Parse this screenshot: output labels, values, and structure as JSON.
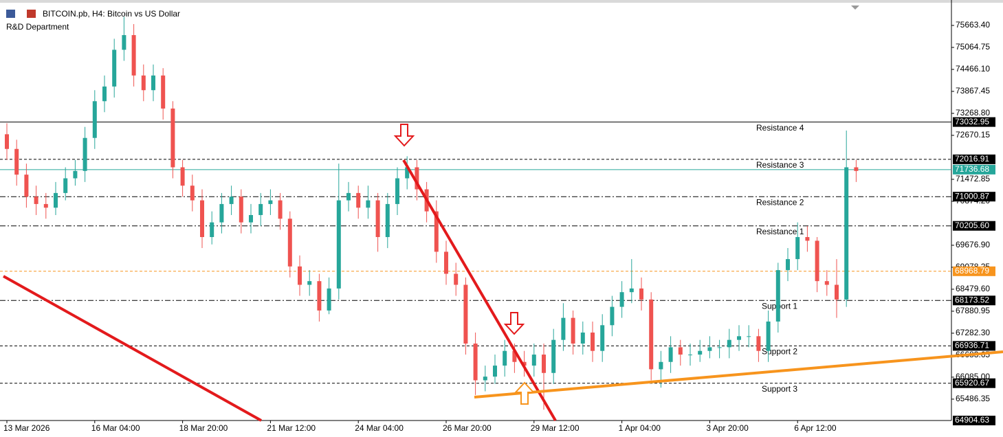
{
  "chart_data": {
    "type": "candlestick",
    "title": "BITCOIN.pb, H4:  Bitcoin vs US Dollar",
    "subtitle": "R&D Department",
    "up_color": "#26a69a",
    "down_color": "#ef5350",
    "categories": [
      "13 Mar 2026",
      null,
      null,
      null,
      null,
      null,
      null,
      null,
      null,
      "16 Mar 04:00",
      null,
      null,
      null,
      null,
      null,
      null,
      null,
      null,
      "18 Mar 20:00",
      null,
      null,
      null,
      null,
      null,
      null,
      null,
      null,
      "21 Mar 12:00",
      null,
      null,
      null,
      null,
      null,
      null,
      null,
      null,
      "24 Mar 04:00",
      null,
      null,
      null,
      null,
      null,
      null,
      null,
      null,
      "26 Mar 20:00",
      null,
      null,
      null,
      null,
      null,
      null,
      null,
      null,
      "29 Mar 12:00",
      null,
      null,
      null,
      null,
      null,
      null,
      null,
      null,
      "1 Apr 04:00",
      null,
      null,
      null,
      null,
      null,
      null,
      null,
      null,
      "3 Apr 20:00",
      null,
      null,
      null,
      null,
      null,
      null,
      null,
      null,
      "6 Apr 12:00",
      null,
      null,
      null,
      null,
      null,
      null
    ],
    "open": [
      72700,
      72300,
      71600,
      71000,
      70800,
      70700,
      71100,
      71500,
      71700,
      72600,
      73600,
      74000,
      75000,
      75400,
      74300,
      73900,
      74300,
      73400,
      71800,
      71300,
      70900,
      69900,
      70300,
      70800,
      71000,
      70300,
      70500,
      70800,
      70900,
      70400,
      69100,
      68600,
      68700,
      67900,
      68500,
      70900,
      71100,
      70700,
      70900,
      69900,
      70800,
      71500,
      71800,
      71200,
      70600,
      69500,
      68900,
      68600,
      67000,
      66000,
      66100,
      66400,
      66800,
      66500,
      66400,
      66700,
      66200,
      67100,
      67700,
      67000,
      67300,
      66800,
      67500,
      68000,
      68400,
      68500,
      68200,
      66300,
      66500,
      66900,
      66700,
      66700,
      66800,
      66900,
      66900,
      67100,
      67200,
      67200,
      66800,
      67600,
      69000,
      69300,
      69900,
      69800,
      68700,
      68600,
      68200,
      71800
    ],
    "high": [
      73000,
      72550,
      71900,
      71300,
      71100,
      71400,
      71800,
      72000,
      72900,
      73900,
      74300,
      75300,
      75900,
      75700,
      74600,
      74600,
      74500,
      73600,
      72000,
      71600,
      71200,
      70600,
      71100,
      71300,
      71200,
      70800,
      71100,
      71200,
      71100,
      70600,
      69400,
      69000,
      68900,
      68800,
      71900,
      71400,
      71300,
      71300,
      71100,
      71100,
      71800,
      72100,
      72000,
      71400,
      70900,
      69800,
      69200,
      68800,
      67300,
      66400,
      66700,
      67100,
      67000,
      66800,
      67000,
      67000,
      67400,
      68100,
      67900,
      67600,
      67600,
      67800,
      68300,
      68700,
      69300,
      68800,
      68400,
      66800,
      67200,
      67100,
      67000,
      67100,
      67200,
      67100,
      67400,
      67500,
      67500,
      67400,
      67900,
      69200,
      69600,
      70300,
      70200,
      69900,
      69000,
      69300,
      72800,
      72000
    ],
    "low": [
      72000,
      71300,
      70700,
      70500,
      70400,
      70500,
      70900,
      71300,
      71400,
      72300,
      73300,
      73700,
      74700,
      74000,
      73600,
      73600,
      73100,
      71500,
      71000,
      70600,
      69600,
      69700,
      70000,
      70500,
      70000,
      70000,
      70200,
      70500,
      70100,
      68800,
      68300,
      68300,
      67600,
      67800,
      68200,
      70600,
      70400,
      70400,
      69500,
      69600,
      70500,
      71200,
      70900,
      70300,
      69200,
      68600,
      68300,
      66700,
      65600,
      65700,
      65900,
      66100,
      66200,
      66100,
      66100,
      65200,
      65900,
      66800,
      66700,
      66700,
      66500,
      66500,
      67200,
      67700,
      68100,
      67900,
      66000,
      65800,
      66200,
      66400,
      66400,
      66500,
      66600,
      66600,
      66600,
      66800,
      66900,
      66500,
      66500,
      67300,
      68700,
      69000,
      69500,
      68400,
      68300,
      67700,
      68000,
      71400
    ],
    "close": [
      72300,
      71600,
      71000,
      70800,
      70700,
      71100,
      71500,
      71700,
      72600,
      73600,
      74000,
      75000,
      75400,
      74300,
      73900,
      74300,
      73400,
      71800,
      71300,
      70900,
      69900,
      70300,
      70800,
      71000,
      70300,
      70500,
      70800,
      70900,
      70400,
      69100,
      68600,
      68700,
      67900,
      68500,
      70900,
      71100,
      70700,
      70900,
      69900,
      70800,
      71500,
      71800,
      71200,
      70600,
      69500,
      68900,
      68600,
      67000,
      66000,
      66100,
      66400,
      66800,
      66500,
      66400,
      66700,
      66200,
      67100,
      67700,
      67000,
      67300,
      66800,
      67500,
      68000,
      68400,
      68500,
      68200,
      66300,
      66500,
      66900,
      66700,
      66700,
      66800,
      66900,
      66900,
      67100,
      67200,
      67200,
      66800,
      67600,
      69000,
      69300,
      69900,
      69800,
      68700,
      68600,
      68200,
      71800,
      71700
    ],
    "ylim": [
      64904.63,
      76355.7
    ],
    "yticks": [
      {
        "value": 75663.4,
        "label": "75663.40"
      },
      75064.75,
      {
        "value": 74466.1,
        "label": "74466.10"
      },
      73867.45,
      {
        "value": 73268.8,
        "label": "73268.80"
      },
      72670.15,
      71472.85,
      {
        "value": 70874.2,
        "label": "70874.20"
      },
      {
        "value": 69676.9,
        "label": "69676.90"
      },
      69078.25,
      {
        "value": 68479.6,
        "label": "68479.60"
      },
      67880.95,
      {
        "value": 67282.3,
        "label": "67282.30"
      },
      66683.65,
      {
        "value": 66085.0,
        "label": "66085.00"
      },
      65486.35
    ],
    "levels": [
      {
        "name": "Resistance 4",
        "value": 73032.95,
        "style": "solid",
        "color": "#000000"
      },
      {
        "name": "Resistance 3",
        "value": 72016.91,
        "style": "dashed",
        "color": "#000000"
      },
      {
        "value": 71736.68,
        "style": "solid",
        "color": "#26a69a"
      },
      {
        "name": "Resistance 2",
        "value": 71000.87,
        "style": "dashdot",
        "color": "#000000"
      },
      {
        "name": "Resistance 1",
        "value": 70205.6,
        "label": "70205.60",
        "style": "dashdot",
        "color": "#000000"
      },
      {
        "value": 68968.79,
        "style": "dashed",
        "color": "#f7941d"
      },
      {
        "name": "Support 1",
        "value": 68173.52,
        "style": "dashdot",
        "color": "#000000"
      },
      {
        "name": "Support 2",
        "value": 66936.71,
        "style": "dashed",
        "color": "#000000"
      },
      {
        "name": "Support 3",
        "value": 65920.67,
        "style": "dashed",
        "color": "#000000"
      },
      {
        "value": 64904.63,
        "style": "none",
        "color": "#000000"
      }
    ]
  }
}
